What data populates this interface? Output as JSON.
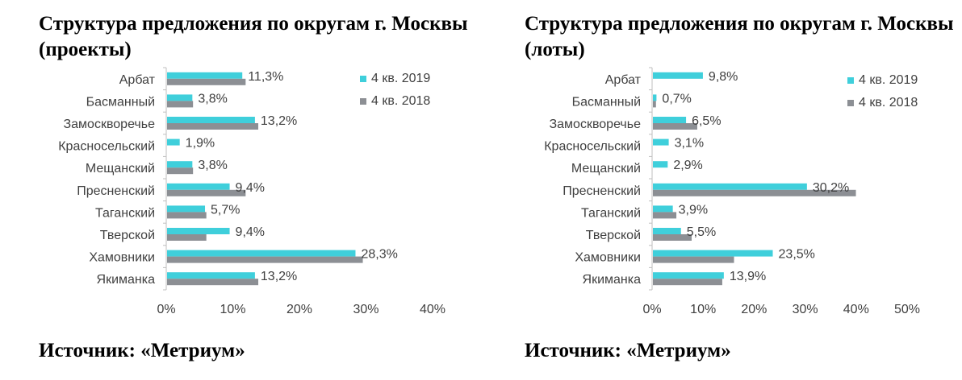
{
  "colors": {
    "series_2019": "#3fcfdb",
    "series_2018": "#8c8f94"
  },
  "chart_data": [
    {
      "type": "bar",
      "orientation": "horizontal",
      "title": "Структура предложения по округам г. Москвы (проекты)",
      "source": "Источник: «Метриум»",
      "categories": [
        "Арбат",
        "Басманный",
        "Замоскворечье",
        "Красносельский",
        "Мещанский",
        "Пресненский",
        "Таганский",
        "Тверской",
        "Хамовники",
        "Якиманка"
      ],
      "series": [
        {
          "name": "4 кв. 2019",
          "values": [
            11.3,
            3.8,
            13.2,
            1.9,
            3.8,
            9.4,
            5.7,
            9.4,
            28.3,
            13.2
          ]
        },
        {
          "name": "4 кв. 2018",
          "values": [
            11.8,
            3.9,
            13.7,
            0,
            3.9,
            11.8,
            5.9,
            5.9,
            29.4,
            13.7
          ]
        }
      ],
      "data_labels": [
        "11,3%",
        "3,8%",
        "13,2%",
        "1,9%",
        "3,8%",
        "9,4%",
        "5,7%",
        "9,4%",
        "28,3%",
        "13,2%"
      ],
      "x_ticks": [
        "0%",
        "10%",
        "20%",
        "30%",
        "40%"
      ],
      "xlim": [
        0,
        40
      ],
      "legend": "top-right",
      "grid": false
    },
    {
      "type": "bar",
      "orientation": "horizontal",
      "title": "Структура предложения по округам г. Москвы (лоты)",
      "source": "Источник: «Метриум»",
      "categories": [
        "Арбат",
        "Басманный",
        "Замоскворечье",
        "Красносельский",
        "Мещанский",
        "Пресненский",
        "Таганский",
        "Тверской",
        "Хамовники",
        "Якиманка"
      ],
      "series": [
        {
          "name": "4 кв. 2019",
          "values": [
            9.8,
            0.7,
            6.5,
            3.1,
            2.9,
            30.2,
            3.9,
            5.5,
            23.5,
            13.9
          ]
        },
        {
          "name": "4 кв. 2018",
          "values": [
            0,
            0.6,
            8.7,
            0,
            0,
            39.8,
            4.6,
            7.6,
            15.9,
            13.6
          ]
        }
      ],
      "data_labels": [
        "9,8%",
        "0,7%",
        "6,5%",
        "3,1%",
        "2,9%",
        "30,2%",
        "3,9%",
        "5,5%",
        "23,5%",
        "13,9%"
      ],
      "x_ticks": [
        "0%",
        "10%",
        "20%",
        "30%",
        "40%",
        "50%"
      ],
      "xlim": [
        0,
        50
      ],
      "legend": "top-right",
      "grid": false
    }
  ]
}
